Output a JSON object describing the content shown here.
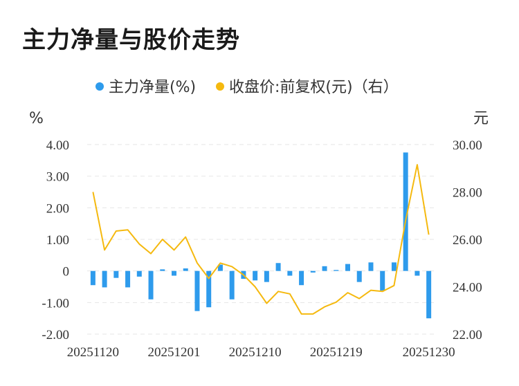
{
  "title": "主力净量与股价走势",
  "colors": {
    "bar": "#2e9bec",
    "line": "#f5b90f",
    "grid": "#e6e6e6",
    "text": "#333333"
  },
  "chart_data": {
    "type": "bar+line",
    "legend": [
      {
        "name": "主力净量(%)",
        "color": "#2e9bec",
        "kind": "dot"
      },
      {
        "name": "收盘价:前复权(元)（右）",
        "color": "#f5b90f",
        "kind": "dot"
      }
    ],
    "legend_position": "top-center",
    "y_left": {
      "unit": "%",
      "min": -2,
      "max": 4,
      "ticks": [
        4,
        3,
        2,
        1,
        0,
        -1,
        -2
      ],
      "tick_labels": [
        "4.00",
        "3.00",
        "2.00",
        "1.00",
        "0",
        "-1.00",
        "-2.00"
      ]
    },
    "y_right": {
      "unit": "元",
      "min": 22,
      "max": 30,
      "ticks": [
        30,
        28,
        26,
        24,
        22
      ],
      "tick_labels": [
        "30.00",
        "28.00",
        "26.00",
        "24.00",
        "22.00"
      ]
    },
    "x_tick_labels": [
      {
        "index": 0,
        "label": "20251120"
      },
      {
        "index": 7,
        "label": "20251201"
      },
      {
        "index": 14,
        "label": "20251210"
      },
      {
        "index": 21,
        "label": "20251219"
      },
      {
        "index": 29,
        "label": "20251230"
      }
    ],
    "grid": true,
    "series": [
      {
        "name": "主力净量(%)",
        "type": "bar",
        "axis": "left",
        "values": [
          -0.45,
          -0.52,
          -0.22,
          -0.52,
          -0.18,
          -0.9,
          0.05,
          -0.15,
          0.08,
          -1.27,
          -1.15,
          0.2,
          -0.9,
          -0.25,
          -0.3,
          -0.35,
          0.25,
          -0.15,
          -0.45,
          -0.05,
          0.15,
          0.03,
          0.22,
          -0.35,
          0.27,
          -0.62,
          0.27,
          3.75,
          -0.15,
          -1.5
        ]
      },
      {
        "name": "收盘价:前复权(元)（右）",
        "type": "line",
        "axis": "right",
        "values": [
          28.0,
          25.55,
          26.35,
          26.4,
          25.8,
          25.4,
          26.0,
          25.55,
          26.1,
          25.0,
          24.35,
          25.0,
          24.85,
          24.5,
          24.0,
          23.3,
          23.8,
          23.7,
          22.85,
          22.85,
          23.15,
          23.35,
          23.75,
          23.5,
          23.85,
          23.8,
          24.05,
          26.8,
          29.15,
          26.2
        ]
      }
    ]
  }
}
